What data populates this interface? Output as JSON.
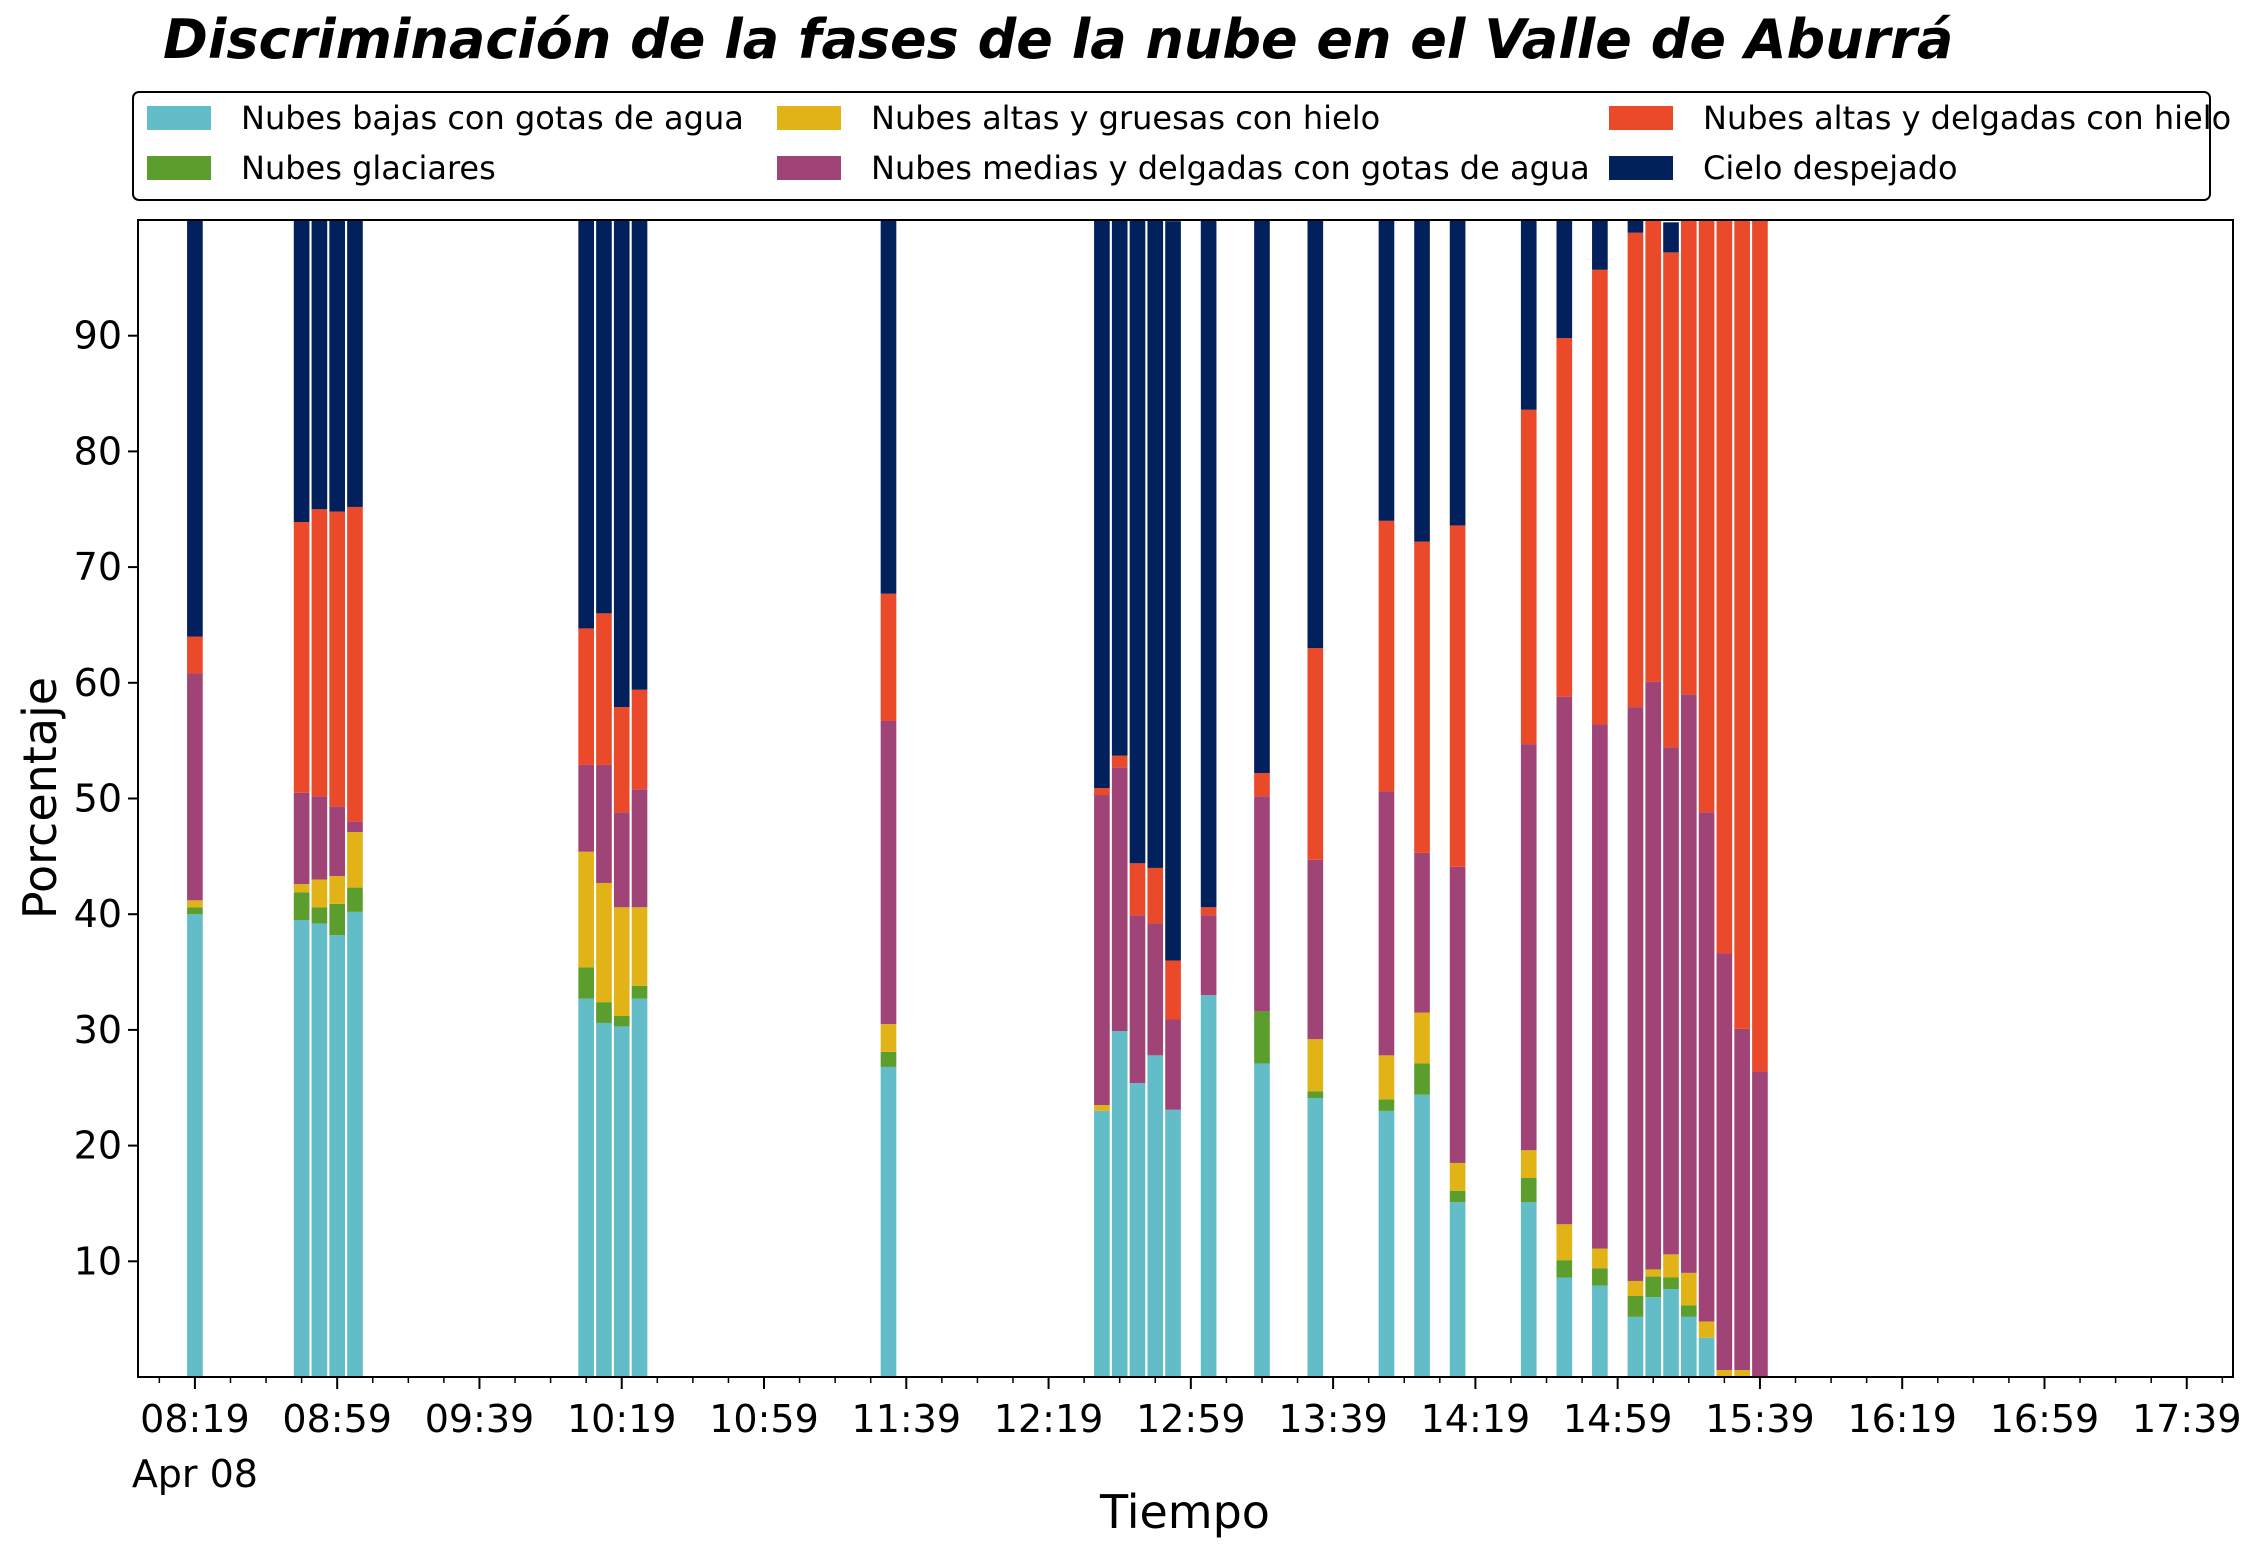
{
  "chart_data": {
    "type": "bar",
    "stacked": true,
    "title": "Discriminación de la fases de la nube en el Valle de Aburrá",
    "xlabel": "Tiempo",
    "ylabel": "Porcentaje",
    "ylim": [
      0,
      100
    ],
    "yticks": [
      10,
      20,
      30,
      40,
      50,
      60,
      70,
      80,
      90
    ],
    "xticks": [
      "08:19",
      "08:59",
      "09:39",
      "10:19",
      "10:59",
      "11:39",
      "12:19",
      "12:59",
      "13:39",
      "14:19",
      "14:59",
      "15:39",
      "16:19",
      "16:59",
      "17:39"
    ],
    "xtick_date": "Apr 08",
    "legend_position": "top",
    "grid": false,
    "x": [
      "08:19",
      "08:49",
      "08:54",
      "08:59",
      "09:04",
      "10:09",
      "10:14",
      "10:19",
      "10:24",
      "11:34",
      "12:34",
      "12:39",
      "12:44",
      "12:49",
      "12:54",
      "13:04",
      "13:19",
      "13:34",
      "13:54",
      "14:04",
      "14:14",
      "14:34",
      "14:44",
      "14:54",
      "15:04",
      "15:09",
      "15:14",
      "15:19",
      "15:24",
      "15:29",
      "15:34",
      "15:39",
      "15:44",
      "15:49"
    ],
    "series": [
      {
        "name": "Nubes bajas con gotas de agua",
        "color": "#63BDC8",
        "values": [
          40,
          39.5,
          39.2,
          38.2,
          40.2,
          32.7,
          30.6,
          30.3,
          32.7,
          26.8,
          23,
          29.9,
          25.4,
          27.8,
          23.1,
          33,
          27.1,
          24.1,
          23,
          24.4,
          15.1,
          15.1,
          8.6,
          7.9,
          5.2,
          6.9,
          7.6,
          5.2,
          3.4,
          0,
          0,
          0,
          0,
          0
        ]
      },
      {
        "name": "Nubes glaciares",
        "color": "#5C9E2D",
        "values": [
          0.6,
          2.4,
          1.4,
          2.7,
          2.1,
          2.7,
          1.8,
          0.9,
          1.1,
          1.3,
          0,
          0,
          0,
          0,
          0,
          0,
          4.5,
          0.6,
          1,
          2.7,
          1,
          2.1,
          1.5,
          1.5,
          1.8,
          1.8,
          1,
          1,
          0,
          0,
          0,
          0,
          0,
          0
        ]
      },
      {
        "name": "Nubes altas y gruesas con hielo",
        "color": "#E2B317",
        "values": [
          0.6,
          0.7,
          2.4,
          2.4,
          4.8,
          10,
          10.3,
          9.4,
          6.8,
          2.4,
          0.5,
          0,
          0,
          0,
          0,
          0,
          0,
          4.5,
          3.8,
          4.4,
          2.4,
          2.4,
          3.1,
          1.7,
          1.3,
          0.6,
          2,
          2.8,
          1.4,
          0.6,
          0.6,
          0,
          0,
          0
        ]
      },
      {
        "name": "Nubes medias y delgadas con gotas de agua",
        "color": "#A04376",
        "values": [
          19.6,
          7.9,
          7.2,
          6,
          0.9,
          7.5,
          10.2,
          8.2,
          10.2,
          26.2,
          26.8,
          22.8,
          14.5,
          11.4,
          7.8,
          6.9,
          18.6,
          15.5,
          22.8,
          13.8,
          25.6,
          35.1,
          45.6,
          45.3,
          49.6,
          50.8,
          43.8,
          50,
          44,
          36,
          29.5,
          26.4,
          0,
          0
        ]
      },
      {
        "name": "Nubes altas y delgadas con hielo",
        "color": "#EB4A2A",
        "values": [
          3.2,
          23.4,
          24.8,
          25.5,
          27.2,
          11.8,
          13.1,
          9.1,
          8.6,
          11,
          0.6,
          1,
          4.5,
          4.8,
          5.1,
          0.7,
          2,
          18.3,
          23.4,
          26.9,
          29.5,
          28.9,
          31,
          39.3,
          41,
          39.9,
          42.8,
          41.1,
          51.3,
          63.4,
          69.9,
          73.6,
          0,
          0
        ]
      },
      {
        "name": "Cielo despejado",
        "color": "#02205B",
        "values": [
          36,
          26.2,
          25.1,
          25.4,
          24.8,
          35.4,
          34,
          42.1,
          40.6,
          32.3,
          49.1,
          46.4,
          55.6,
          56,
          63.9,
          59.4,
          47.8,
          37,
          26.1,
          28.2,
          26.5,
          16.6,
          10.2,
          4.5,
          1.2,
          0.5,
          2.6,
          0.2,
          0,
          0,
          0,
          0,
          0,
          0
        ]
      }
    ]
  },
  "legend": {
    "items": [
      {
        "label": "Nubes bajas con gotas de agua",
        "color": "#63BDC8"
      },
      {
        "label": "Nubes altas y gruesas con hielo",
        "color": "#E2B317"
      },
      {
        "label": "Nubes altas y delgadas con hielo",
        "color": "#EB4A2A"
      },
      {
        "label": "Nubes glaciares",
        "color": "#5C9E2D"
      },
      {
        "label": "Nubes medias y delgadas con gotas de agua",
        "color": "#A04376"
      },
      {
        "label": "Cielo despejado",
        "color": "#02205B"
      }
    ]
  }
}
